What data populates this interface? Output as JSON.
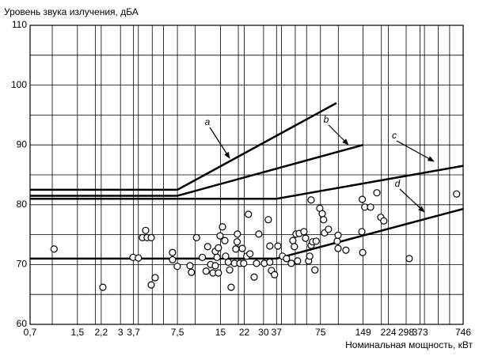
{
  "chart_data": {
    "type": "scatter",
    "ylabel": "Уровень звука излучения, дБА",
    "xlabel": "Номинальная мощность, кВт",
    "xscale": "log",
    "xlim": [
      0.7,
      746
    ],
    "ylim": [
      60,
      110
    ],
    "xticks": [
      {
        "value": 0.7,
        "label": "0,7"
      },
      {
        "value": 1.5,
        "label": "1,5"
      },
      {
        "value": 2.2,
        "label": "2,2"
      },
      3,
      {
        "value": 3.7,
        "label": "3,7"
      },
      {
        "value": 7.5,
        "label": "7,5"
      },
      15,
      22,
      30,
      37,
      75,
      149,
      224,
      298,
      373,
      746
    ],
    "yticks": [
      60,
      70,
      80,
      90,
      100,
      110
    ],
    "x_minor_ticks": [
      1,
      2,
      4,
      5,
      6,
      10,
      20,
      40,
      50,
      60,
      100,
      200,
      400,
      500,
      600
    ],
    "y_minor_ticks": [
      65,
      75,
      85,
      95,
      105
    ],
    "grid": true,
    "marker_color": "#000000",
    "x": [
      1.03,
      2.26,
      3.67,
      4.0,
      4.27,
      4.5,
      4.61,
      4.92,
      4.92,
      5.24,
      6.93,
      6.93,
      7.48,
      9.18,
      9.4,
      10.2,
      11.2,
      11.9,
      12.2,
      12.8,
      13.3,
      13.8,
      13.8,
      14.2,
      14.5,
      14.5,
      14.9,
      15.5,
      16.1,
      16.3,
      17.0,
      17.4,
      17.8,
      18.8,
      19.2,
      19.6,
      19.7,
      20.5,
      21.3,
      21.8,
      22.9,
      23.5,
      24.1,
      25.8,
      26.8,
      27.8,
      30.4,
      32.4,
      33.2,
      33.2,
      34.1,
      35.8,
      37.8,
      40.7,
      43.4,
      46.9,
      48.1,
      49.3,
      50.6,
      51.9,
      53.3,
      57.5,
      59.0,
      62.0,
      63.1,
      64.5,
      64.5,
      66.1,
      68.6,
      70,
      74.2,
      77.2,
      78.9,
      80.1,
      85.3,
      98.2,
      99.6,
      99.6,
      113,
      146,
      147,
      148,
      153,
      168,
      186,
      198,
      208,
      313,
      671
    ],
    "values": [
      72.6,
      66.2,
      71.2,
      71.1,
      74.5,
      75.7,
      74.5,
      74.5,
      66.6,
      67.8,
      72.0,
      70.8,
      69.7,
      69.8,
      68.7,
      74.5,
      71.2,
      68.9,
      73.0,
      70.0,
      68.6,
      72.2,
      69.8,
      71.2,
      72.8,
      68.6,
      74.8,
      76.3,
      74.0,
      71.4,
      70.4,
      69.1,
      66.2,
      70.2,
      72.6,
      73.8,
      75.1,
      70.2,
      72.7,
      70.2,
      71.4,
      78.4,
      71.8,
      67.9,
      70.2,
      75.1,
      70.2,
      77.5,
      73.1,
      70.4,
      69.0,
      68.3,
      73.1,
      71.4,
      71.0,
      70.2,
      74.0,
      73.0,
      75.1,
      70.6,
      75.2,
      75.5,
      74.4,
      70.6,
      71.4,
      73.2,
      80.8,
      73.8,
      69.1,
      73.9,
      79.4,
      78.5,
      77.5,
      75.3,
      75.9,
      73.9,
      74.9,
      72.7,
      72.4,
      75.5,
      80.9,
      72.0,
      79.6,
      79.6,
      82.0,
      77.9,
      77.3,
      71.0,
      81.8
    ],
    "lines": [
      {
        "name": "a",
        "color": "#000000",
        "x": [
          0.7,
          7.5,
          97
        ],
        "values": [
          82.5,
          82.5,
          97
        ]
      },
      {
        "name": "b",
        "color": "#000000",
        "x": [
          0.7,
          7.5,
          149
        ],
        "values": [
          81.5,
          81.5,
          90
        ]
      },
      {
        "name": "c",
        "color": "#000000",
        "x": [
          0.7,
          37,
          746
        ],
        "values": [
          81,
          81,
          86.5
        ]
      },
      {
        "name": "d",
        "color": "#000000",
        "x": [
          0.7,
          37,
          746
        ],
        "values": [
          71,
          71,
          79.3
        ]
      }
    ]
  }
}
